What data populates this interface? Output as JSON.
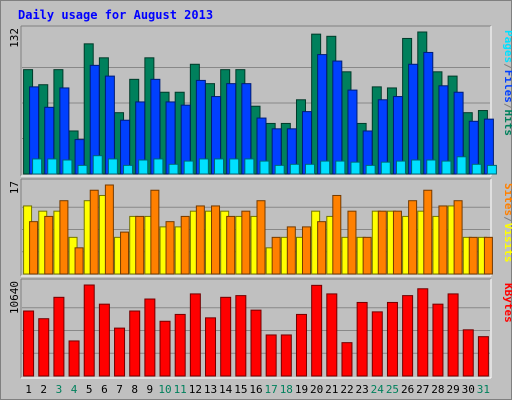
{
  "title": "Daily usage for August 2013",
  "colors": {
    "background": "#c0c0c0",
    "border_dark": "#808080",
    "border_light": "#ffffff",
    "panel": "#c0c0c0",
    "grid": "#888888",
    "hits": "#00805c",
    "files": "#0040ff",
    "pages": "#00e0ff",
    "visits": "#ffff00",
    "sites": "#ff8000",
    "kbytes": "#ff0000",
    "title": "#0000ff",
    "weekday_label": "#000000",
    "weekend_label": "#00805c"
  },
  "chart_data": [
    {
      "type": "bar",
      "name": "hits-files-pages",
      "scale_label": "132",
      "ymax": 132,
      "legend": [
        "Pages",
        "/",
        "Files",
        "/",
        "Hits"
      ],
      "categories": [
        "1",
        "2",
        "3",
        "4",
        "5",
        "6",
        "7",
        "8",
        "9",
        "10",
        "11",
        "12",
        "13",
        "14",
        "15",
        "16",
        "17",
        "18",
        "19",
        "20",
        "21",
        "22",
        "23",
        "24",
        "25",
        "26",
        "27",
        "28",
        "29",
        "30",
        "31"
      ],
      "series": [
        {
          "name": "Hits",
          "values": [
            97,
            83,
            97,
            40,
            121,
            108,
            57,
            88,
            108,
            76,
            76,
            102,
            84,
            97,
            97,
            63,
            47,
            47,
            69,
            130,
            128,
            95,
            47,
            81,
            80,
            126,
            132,
            95,
            91,
            57,
            59
          ]
        },
        {
          "name": "Files",
          "values": [
            81,
            62,
            80,
            32,
            101,
            91,
            50,
            67,
            88,
            67,
            64,
            87,
            72,
            84,
            84,
            52,
            42,
            42,
            58,
            111,
            105,
            78,
            40,
            69,
            72,
            102,
            113,
            82,
            76,
            49,
            51
          ]
        },
        {
          "name": "Pages",
          "values": [
            14,
            14,
            13,
            8,
            17,
            14,
            8,
            13,
            14,
            9,
            12,
            14,
            14,
            14,
            14,
            12,
            8,
            9,
            9,
            12,
            12,
            11,
            8,
            11,
            12,
            13,
            13,
            12,
            16,
            9,
            8
          ]
        }
      ]
    },
    {
      "type": "bar",
      "name": "visits-sites",
      "scale_label": "17",
      "ymax": 17,
      "legend": [
        "Sites",
        "/",
        "Visits"
      ],
      "categories": [
        "1",
        "2",
        "3",
        "4",
        "5",
        "6",
        "7",
        "8",
        "9",
        "10",
        "11",
        "12",
        "13",
        "14",
        "15",
        "16",
        "17",
        "18",
        "19",
        "20",
        "21",
        "22",
        "23",
        "24",
        "25",
        "26",
        "27",
        "28",
        "29",
        "30",
        "31"
      ],
      "series": [
        {
          "name": "Visits",
          "values": [
            13,
            12,
            12,
            7,
            14,
            15,
            7,
            11,
            11,
            9,
            9,
            12,
            12,
            12,
            11,
            11,
            5,
            7,
            7,
            12,
            11,
            7,
            7,
            12,
            12,
            11,
            12,
            11,
            13,
            7,
            7
          ]
        },
        {
          "name": "Sites",
          "values": [
            10,
            11,
            14,
            5,
            16,
            17,
            8,
            11,
            16,
            10,
            11,
            13,
            13,
            11,
            12,
            14,
            7,
            9,
            9,
            10,
            15,
            12,
            7,
            12,
            12,
            14,
            16,
            13,
            14,
            7,
            7
          ]
        }
      ]
    },
    {
      "type": "bar",
      "name": "kbytes",
      "scale_label": "10640",
      "ymax": 10640,
      "legend": [
        "KBytes"
      ],
      "categories": [
        "1",
        "2",
        "3",
        "4",
        "5",
        "6",
        "7",
        "8",
        "9",
        "10",
        "11",
        "12",
        "13",
        "14",
        "15",
        "16",
        "17",
        "18",
        "19",
        "20",
        "21",
        "22",
        "23",
        "24",
        "25",
        "26",
        "27",
        "28",
        "29",
        "30",
        "31"
      ],
      "series": [
        {
          "name": "KBytes",
          "values": [
            7600,
            6700,
            9200,
            4100,
            10640,
            8400,
            5600,
            7600,
            9000,
            6400,
            7200,
            9600,
            6800,
            9200,
            9400,
            7700,
            4800,
            4800,
            7200,
            10600,
            9600,
            3900,
            8600,
            7500,
            8600,
            9400,
            10200,
            8400,
            9600,
            5400,
            4600
          ]
        }
      ]
    }
  ],
  "weekend_days": [
    "3",
    "4",
    "10",
    "11",
    "17",
    "18",
    "24",
    "25",
    "31"
  ]
}
